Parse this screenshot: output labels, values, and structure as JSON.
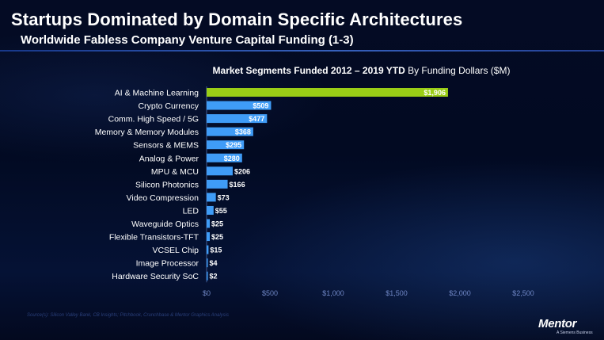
{
  "title": "Startups Dominated by Domain Specific Architectures",
  "subtitle": "Worldwide Fabless Company Venture Capital Funding (1-3)",
  "chart_heading": {
    "bold_part": "Market Segments Funded  2012 – 2019 YTD",
    "regular_part": "By Funding Dollars ($M)"
  },
  "footnote": "Source(s): Silicon Valley Bank, CB Insights; Pitchbook, Crunchbase & Mentor Graphics Analysis",
  "logo": {
    "name": "Mentor",
    "tagline": "A Siemens Business"
  },
  "colors": {
    "highlight_bar": "#9acd16",
    "bar": "#3f9cf7",
    "background": "#03091f"
  },
  "chart_data": {
    "type": "bar",
    "orientation": "horizontal",
    "title": "Market Segments Funded  2012 – 2019 YTD By Funding Dollars ($M)",
    "categories": [
      "AI & Machine Learning",
      "Crypto Currency",
      "Comm. High Speed / 5G",
      "Memory & Memory Modules",
      "Sensors & MEMS",
      "Analog & Power",
      "MPU & MCU",
      "Silicon Photonics",
      "Video Compression",
      "LED",
      "Waveguide Optics",
      "Flexible Transistors-TFT",
      "VCSEL Chip",
      "Image Processor",
      "Hardware Security SoC"
    ],
    "values": [
      1906,
      509,
      477,
      368,
      295,
      280,
      206,
      166,
      73,
      55,
      25,
      25,
      15,
      4,
      2
    ],
    "data_labels": [
      "$1,906",
      "$509",
      "$477",
      "$368",
      "$295",
      "$280",
      "$206",
      "$166",
      "$73",
      "$55",
      "$25",
      "$25",
      "$15",
      "$4",
      "$2"
    ],
    "highlight_index": 0,
    "xlim": [
      0,
      2500
    ],
    "x_ticks": [
      0,
      500,
      1000,
      1500,
      2000,
      2500
    ],
    "x_tick_labels": [
      "$0",
      "$500",
      "$1,000",
      "$1,500",
      "$2,000",
      "$2,500"
    ],
    "grid": false,
    "legend": "none"
  }
}
